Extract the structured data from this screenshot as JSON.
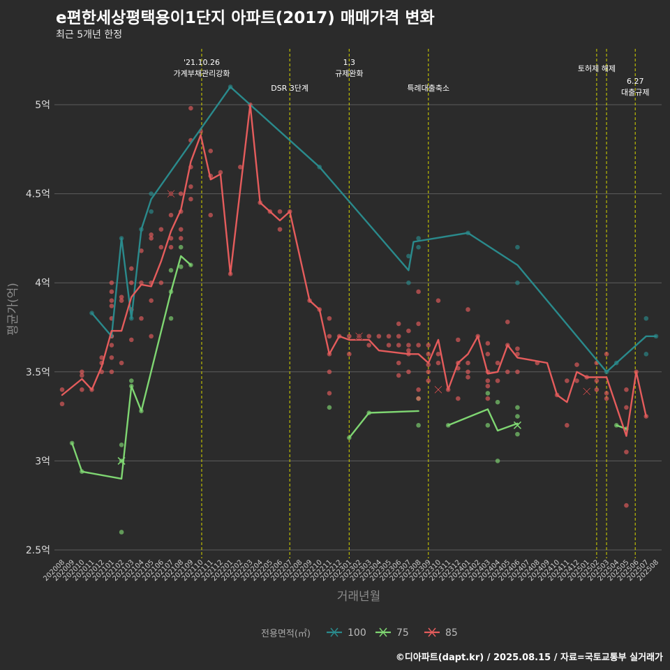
{
  "header": {
    "title": "e편한세상평택용이1단지 아파트(2017) 매매가격 변화",
    "subtitle": "최근 5개년 한정"
  },
  "caption": "©디아파트(dapt.kr) / 2025.08.15 / 자료=국토교통부 실거래가",
  "legend": {
    "title": "전용면적(㎡)",
    "items": [
      {
        "label": "100",
        "color": "#2a8a8c"
      },
      {
        "label": "75",
        "color": "#7fd672"
      },
      {
        "label": "85",
        "color": "#e55c5c"
      }
    ]
  },
  "chart_data": {
    "type": "line",
    "xlabel": "거래년월",
    "ylabel": "평균가(억)",
    "ylim": [
      2.5,
      5.25
    ],
    "yticks": [
      2.5,
      3,
      3.5,
      4,
      4.5,
      5
    ],
    "ytick_labels": [
      "2.5억",
      "3억",
      "3.5억",
      "4억",
      "4.5억",
      "5억"
    ],
    "grid": true,
    "legend_position": "bottom",
    "categories": [
      "202008",
      "202009",
      "202010",
      "202011",
      "202012",
      "202101",
      "202102",
      "202103",
      "202104",
      "202105",
      "202106",
      "202107",
      "202108",
      "202109",
      "202110",
      "202111",
      "202112",
      "202201",
      "202202",
      "202203",
      "202204",
      "202205",
      "202206",
      "202207",
      "202208",
      "202209",
      "202210",
      "202211",
      "202212",
      "202301",
      "202302",
      "202303",
      "202304",
      "202305",
      "202306",
      "202307",
      "202308",
      "202309",
      "202310",
      "202311",
      "202312",
      "202401",
      "202402",
      "202403",
      "202404",
      "202405",
      "202406",
      "202407",
      "202408",
      "202409",
      "202410",
      "202411",
      "202412",
      "202501",
      "202502",
      "202503",
      "202504",
      "202505",
      "202506",
      "202507",
      "202508"
    ],
    "annotations": [
      {
        "lines": [
          "'21.10.26",
          "가계부채관리강화"
        ],
        "x": 14.1
      },
      {
        "lines": [
          "DSR 3단계"
        ],
        "x": 23.0
      },
      {
        "lines": [
          "1.3",
          "규제완화"
        ],
        "x": 29.0
      },
      {
        "lines": [
          "특례대출축소"
        ],
        "x": 37.0
      },
      {
        "lines": [
          "토허제 해제"
        ],
        "x": 54.0
      },
      {
        "lines": [
          "6.27",
          "대출규제"
        ],
        "x": 57.9
      }
    ],
    "event_lines": [
      14.1,
      23.0,
      29.0,
      37.0,
      54.0,
      55.0,
      57.9
    ],
    "series": [
      {
        "name": "100",
        "color": "#2a8a8c",
        "line": [
          [
            3,
            3.83
          ],
          [
            5,
            3.7
          ],
          [
            6,
            4.25
          ],
          [
            7,
            3.8
          ],
          [
            8,
            4.3
          ],
          [
            9,
            4.47
          ],
          [
            17,
            5.1
          ],
          [
            26,
            4.65
          ],
          [
            35,
            4.07
          ],
          [
            35.5,
            4.23
          ],
          [
            41,
            4.28
          ],
          [
            46,
            4.1
          ],
          [
            55,
            3.5
          ],
          [
            56,
            3.55
          ],
          [
            59,
            3.7
          ],
          [
            60,
            3.7
          ]
        ],
        "points": [
          [
            3,
            3.83
          ],
          [
            5,
            3.7
          ],
          [
            6,
            4.25
          ],
          [
            7,
            3.8
          ],
          [
            8,
            4.3
          ],
          [
            9,
            4.5
          ],
          [
            9,
            4.4
          ],
          [
            17,
            5.1
          ],
          [
            26,
            4.65
          ],
          [
            35,
            4.15
          ],
          [
            35,
            4.0
          ],
          [
            36,
            4.25
          ],
          [
            36,
            4.2
          ],
          [
            41,
            4.28
          ],
          [
            46,
            4.2
          ],
          [
            46,
            4.0
          ],
          [
            55,
            3.5
          ],
          [
            56,
            3.55
          ],
          [
            59,
            3.8
          ],
          [
            59,
            3.6
          ],
          [
            60,
            3.7
          ]
        ],
        "cross": []
      },
      {
        "name": "75",
        "color": "#7fd672",
        "segments": [
          [
            [
              1,
              3.1
            ],
            [
              2,
              2.94
            ],
            [
              6,
              2.9
            ],
            [
              7,
              3.42
            ],
            [
              8,
              3.28
            ],
            [
              11,
              3.95
            ],
            [
              12,
              4.15
            ],
            [
              13,
              4.1
            ]
          ],
          [
            [
              29,
              3.13
            ],
            [
              31,
              3.27
            ],
            [
              36,
              3.28
            ]
          ],
          [
            [
              39,
              3.2
            ],
            [
              43,
              3.29
            ],
            [
              44,
              3.17
            ],
            [
              46,
              3.21
            ]
          ],
          [
            [
              56,
              3.2
            ],
            [
              57,
              3.18
            ]
          ]
        ],
        "points": [
          [
            1,
            3.1
          ],
          [
            2,
            2.94
          ],
          [
            6,
            3.09
          ],
          [
            6,
            3.0
          ],
          [
            6,
            2.6
          ],
          [
            7,
            3.45
          ],
          [
            7,
            3.42
          ],
          [
            8,
            3.28
          ],
          [
            11,
            4.07
          ],
          [
            11,
            3.95
          ],
          [
            11,
            3.8
          ],
          [
            12,
            4.2
          ],
          [
            12,
            4.09
          ],
          [
            13,
            4.1
          ],
          [
            27,
            3.3
          ],
          [
            29,
            3.13
          ],
          [
            31,
            3.27
          ],
          [
            36,
            3.35
          ],
          [
            36,
            3.2
          ],
          [
            39,
            3.2
          ],
          [
            43,
            3.38
          ],
          [
            43,
            3.2
          ],
          [
            44,
            3.33
          ],
          [
            44,
            3.0
          ],
          [
            46,
            3.3
          ],
          [
            46,
            3.25
          ],
          [
            46,
            3.15
          ],
          [
            56,
            3.2
          ],
          [
            57,
            3.18
          ]
        ],
        "cross": [
          [
            6,
            3.0
          ],
          [
            46,
            3.2
          ]
        ]
      },
      {
        "name": "85",
        "color": "#e55c5c",
        "line": [
          [
            0,
            3.37
          ],
          [
            2,
            3.46
          ],
          [
            3,
            3.4
          ],
          [
            4,
            3.53
          ],
          [
            5,
            3.73
          ],
          [
            6,
            3.73
          ],
          [
            7,
            3.92
          ],
          [
            8,
            3.99
          ],
          [
            9,
            3.98
          ],
          [
            10,
            4.12
          ],
          [
            11,
            4.29
          ],
          [
            12,
            4.41
          ],
          [
            13,
            4.68
          ],
          [
            14,
            4.83
          ],
          [
            15,
            4.58
          ],
          [
            16,
            4.61
          ],
          [
            17,
            4.05
          ],
          [
            19,
            5.0
          ],
          [
            20,
            4.45
          ],
          [
            21,
            4.4
          ],
          [
            22,
            4.35
          ],
          [
            23,
            4.4
          ],
          [
            25,
            3.9
          ],
          [
            26,
            3.85
          ],
          [
            27,
            3.6
          ],
          [
            28,
            3.7
          ],
          [
            29,
            3.68
          ],
          [
            31,
            3.68
          ],
          [
            32,
            3.62
          ],
          [
            35,
            3.6
          ],
          [
            36,
            3.6
          ],
          [
            37,
            3.55
          ],
          [
            38,
            3.68
          ],
          [
            39,
            3.4
          ],
          [
            40,
            3.55
          ],
          [
            41,
            3.6
          ],
          [
            42,
            3.7
          ],
          [
            43,
            3.49
          ],
          [
            44,
            3.5
          ],
          [
            45,
            3.65
          ],
          [
            46,
            3.58
          ],
          [
            47,
            3.57
          ],
          [
            49,
            3.55
          ],
          [
            50,
            3.37
          ],
          [
            51,
            3.33
          ],
          [
            52,
            3.5
          ],
          [
            53,
            3.47
          ],
          [
            54,
            3.47
          ],
          [
            55,
            3.47
          ],
          [
            57,
            3.14
          ],
          [
            58,
            3.5
          ],
          [
            59,
            3.25
          ]
        ],
        "points": [
          [
            0,
            3.4
          ],
          [
            0,
            3.32
          ],
          [
            2,
            3.5
          ],
          [
            2,
            3.48
          ],
          [
            2,
            3.4
          ],
          [
            3,
            3.4
          ],
          [
            4,
            3.58
          ],
          [
            4,
            3.55
          ],
          [
            4,
            3.5
          ],
          [
            5,
            4.0
          ],
          [
            5,
            3.95
          ],
          [
            5,
            3.9
          ],
          [
            5,
            3.87
          ],
          [
            5,
            3.8
          ],
          [
            5,
            3.7
          ],
          [
            5,
            3.65
          ],
          [
            5,
            3.58
          ],
          [
            5,
            3.5
          ],
          [
            6,
            3.92
          ],
          [
            6,
            3.9
          ],
          [
            6,
            3.55
          ],
          [
            7,
            4.08
          ],
          [
            7,
            4.0
          ],
          [
            7,
            3.85
          ],
          [
            7,
            3.68
          ],
          [
            8,
            4.18
          ],
          [
            8,
            4.0
          ],
          [
            8,
            3.8
          ],
          [
            9,
            4.27
          ],
          [
            9,
            4.25
          ],
          [
            9,
            4.0
          ],
          [
            9,
            3.9
          ],
          [
            9,
            3.7
          ],
          [
            10,
            4.3
          ],
          [
            10,
            4.2
          ],
          [
            10,
            4.0
          ],
          [
            11,
            4.5
          ],
          [
            11,
            4.38
          ],
          [
            11,
            4.25
          ],
          [
            11,
            4.2
          ],
          [
            12,
            4.5
          ],
          [
            12,
            4.4
          ],
          [
            12,
            4.3
          ],
          [
            12,
            4.25
          ],
          [
            13,
            4.98
          ],
          [
            13,
            4.8
          ],
          [
            13,
            4.65
          ],
          [
            13,
            4.54
          ],
          [
            13,
            4.47
          ],
          [
            14,
            4.85
          ],
          [
            15,
            4.74
          ],
          [
            15,
            4.6
          ],
          [
            15,
            4.38
          ],
          [
            16,
            4.62
          ],
          [
            17,
            4.05
          ],
          [
            18,
            4.65
          ],
          [
            19,
            5.0
          ],
          [
            20,
            4.45
          ],
          [
            21,
            4.4
          ],
          [
            22,
            4.4
          ],
          [
            22,
            4.3
          ],
          [
            23,
            4.4
          ],
          [
            25,
            3.9
          ],
          [
            26,
            3.85
          ],
          [
            27,
            3.8
          ],
          [
            27,
            3.7
          ],
          [
            27,
            3.6
          ],
          [
            27,
            3.5
          ],
          [
            27,
            3.38
          ],
          [
            28,
            3.7
          ],
          [
            29,
            3.7
          ],
          [
            29,
            3.6
          ],
          [
            30,
            3.7
          ],
          [
            31,
            3.7
          ],
          [
            31,
            3.65
          ],
          [
            32,
            3.7
          ],
          [
            33,
            3.7
          ],
          [
            33,
            3.65
          ],
          [
            34,
            3.77
          ],
          [
            34,
            3.7
          ],
          [
            34,
            3.65
          ],
          [
            34,
            3.55
          ],
          [
            34,
            3.48
          ],
          [
            35,
            3.73
          ],
          [
            35,
            3.65
          ],
          [
            35,
            3.62
          ],
          [
            35,
            3.6
          ],
          [
            35,
            3.5
          ],
          [
            36,
            3.95
          ],
          [
            36,
            3.77
          ],
          [
            36,
            3.65
          ],
          [
            36,
            3.4
          ],
          [
            36,
            3.35
          ],
          [
            37,
            3.65
          ],
          [
            37,
            3.6
          ],
          [
            37,
            3.54
          ],
          [
            37,
            3.5
          ],
          [
            37,
            3.45
          ],
          [
            38,
            3.9
          ],
          [
            38,
            3.6
          ],
          [
            38,
            3.55
          ],
          [
            39,
            3.4
          ],
          [
            40,
            3.68
          ],
          [
            40,
            3.55
          ],
          [
            40,
            3.52
          ],
          [
            40,
            3.35
          ],
          [
            41,
            3.85
          ],
          [
            41,
            3.55
          ],
          [
            41,
            3.5
          ],
          [
            41,
            3.47
          ],
          [
            42,
            3.7
          ],
          [
            43,
            3.66
          ],
          [
            43,
            3.6
          ],
          [
            43,
            3.5
          ],
          [
            43,
            3.45
          ],
          [
            43,
            3.42
          ],
          [
            43,
            3.35
          ],
          [
            44,
            3.55
          ],
          [
            44,
            3.45
          ],
          [
            45,
            3.78
          ],
          [
            45,
            3.65
          ],
          [
            45,
            3.5
          ],
          [
            46,
            3.63
          ],
          [
            46,
            3.6
          ],
          [
            46,
            3.5
          ],
          [
            48,
            3.55
          ],
          [
            50,
            3.37
          ],
          [
            51,
            3.45
          ],
          [
            51,
            3.2
          ],
          [
            52,
            3.54
          ],
          [
            52,
            3.45
          ],
          [
            53,
            3.47
          ],
          [
            54,
            3.55
          ],
          [
            54,
            3.45
          ],
          [
            54,
            3.4
          ],
          [
            55,
            3.6
          ],
          [
            55,
            3.38
          ],
          [
            55,
            3.35
          ],
          [
            57,
            3.4
          ],
          [
            57,
            3.3
          ],
          [
            57,
            3.05
          ],
          [
            57,
            2.75
          ],
          [
            58,
            3.5
          ],
          [
            59,
            3.25
          ]
        ],
        "cross": [
          [
            11,
            4.5
          ],
          [
            30,
            3.7
          ],
          [
            38,
            3.4
          ],
          [
            53,
            3.39
          ]
        ]
      }
    ]
  }
}
